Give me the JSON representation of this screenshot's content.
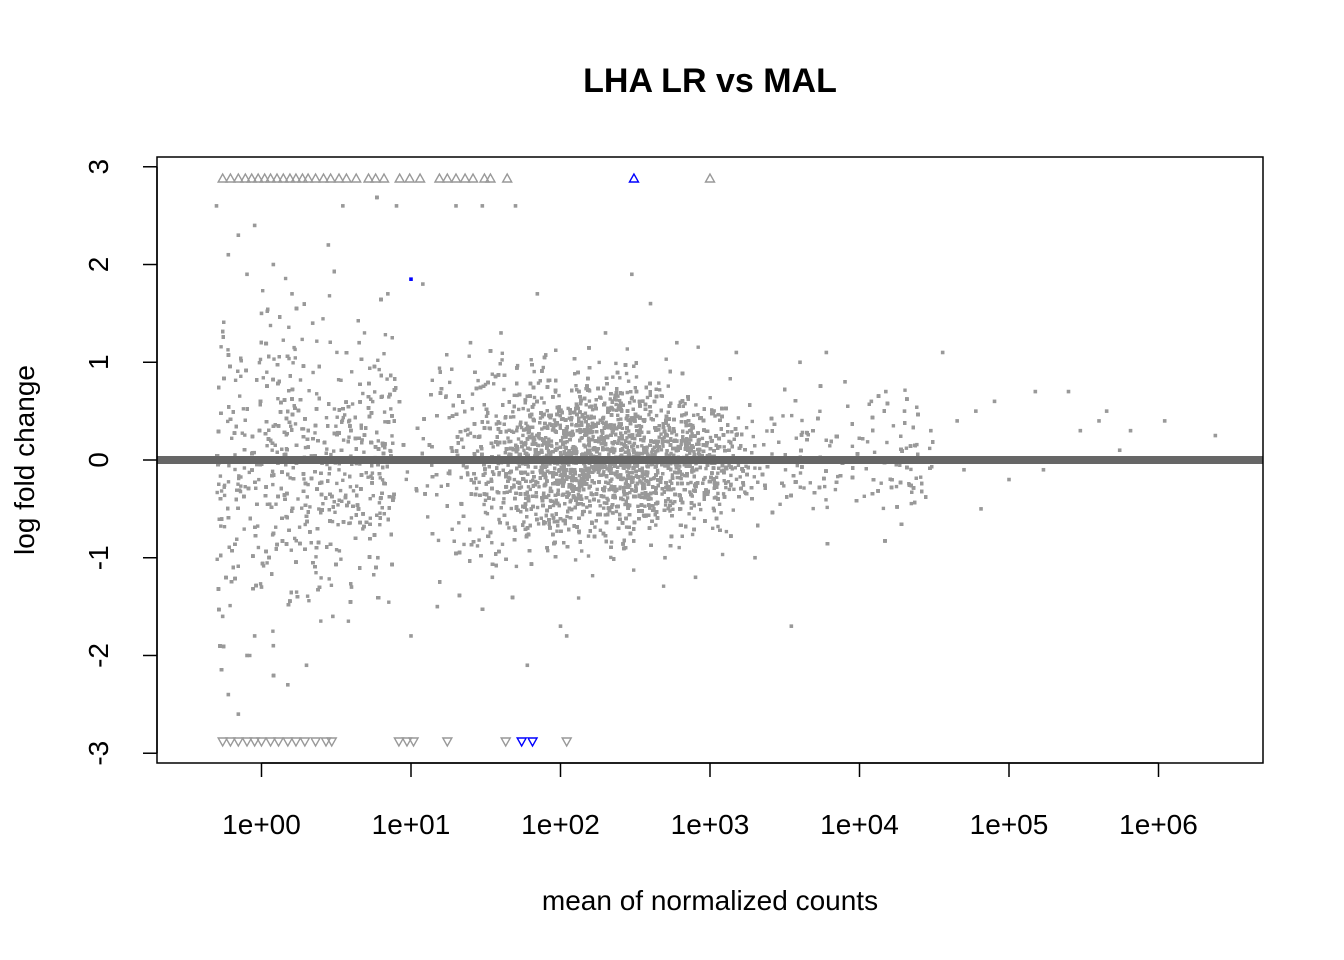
{
  "chart_data": {
    "type": "scatter",
    "title": "LHA LR vs MAL",
    "xlabel": "mean of normalized counts",
    "ylabel": "log fold change",
    "x_scale": "log10",
    "xlim": [
      0.2,
      5000000
    ],
    "ylim": [
      -3.1,
      3.1
    ],
    "x_ticks": [
      {
        "value": 1,
        "label": "1e+00"
      },
      {
        "value": 10,
        "label": "1e+01"
      },
      {
        "value": 100,
        "label": "1e+02"
      },
      {
        "value": 1000,
        "label": "1e+03"
      },
      {
        "value": 10000,
        "label": "1e+04"
      },
      {
        "value": 100000,
        "label": "1e+05"
      },
      {
        "value": 1000000,
        "label": "1e+06"
      }
    ],
    "y_ticks": [
      {
        "value": -3,
        "label": "-3"
      },
      {
        "value": -2,
        "label": "-2"
      },
      {
        "value": -1,
        "label": "-1"
      },
      {
        "value": 0,
        "label": "0"
      },
      {
        "value": 1,
        "label": "1"
      },
      {
        "value": 2,
        "label": "2"
      },
      {
        "value": 3,
        "label": "3"
      }
    ],
    "reference_line": {
      "y": 0,
      "color": "#666666"
    },
    "grid": false,
    "legend": "none",
    "colors": {
      "non_significant": "#999999",
      "significant": "#0000ff"
    },
    "series": [
      {
        "significant": false,
        "marker": "point",
        "points": [
          [
            0.5,
            2.6
          ],
          [
            0.55,
            -1.6
          ],
          [
            0.6,
            2.1
          ],
          [
            0.6,
            -2.4
          ],
          [
            0.7,
            2.3
          ],
          [
            0.7,
            -2.6
          ],
          [
            0.8,
            1.9
          ],
          [
            0.8,
            -2.0
          ],
          [
            0.9,
            2.4
          ],
          [
            0.9,
            -1.8
          ],
          [
            1.0,
            1.5
          ],
          [
            1.0,
            -1.3
          ],
          [
            1.2,
            2.0
          ],
          [
            1.2,
            -1.9
          ],
          [
            1.5,
            -2.3
          ],
          [
            1.6,
            1.7
          ],
          [
            2.0,
            -2.1
          ],
          [
            2.2,
            1.4
          ],
          [
            2.8,
            2.2
          ],
          [
            3.0,
            -1.6
          ],
          [
            3.5,
            2.6
          ],
          [
            4.0,
            -1.3
          ],
          [
            4.5,
            1.2
          ],
          [
            6,
            -1.0
          ],
          [
            7,
            1.7
          ],
          [
            8,
            2.6
          ],
          [
            10,
            -1.8
          ],
          [
            12,
            1.8
          ],
          [
            15,
            -1.5
          ],
          [
            20,
            2.6
          ],
          [
            25,
            1.2
          ],
          [
            30,
            2.6
          ],
          [
            35,
            -1.2
          ],
          [
            40,
            1.3
          ],
          [
            50,
            2.6
          ],
          [
            60,
            -2.1
          ],
          [
            70,
            1.7
          ],
          [
            100,
            -1.7
          ],
          [
            110,
            -1.8
          ],
          [
            200,
            1.3
          ],
          [
            300,
            1.9
          ],
          [
            400,
            1.6
          ],
          [
            500,
            -1.0
          ],
          [
            600,
            1.2
          ],
          [
            800,
            -1.2
          ],
          [
            1500,
            1.1
          ],
          [
            2000,
            -1.0
          ],
          [
            3500,
            -1.7
          ],
          [
            4000,
            1.0
          ],
          [
            6000,
            1.1
          ],
          [
            8000,
            0.8
          ],
          [
            12000,
            0.6
          ],
          [
            15000,
            0.7
          ],
          [
            20000,
            0.5
          ],
          [
            30000,
            0.3
          ],
          [
            36000,
            1.1
          ],
          [
            45000,
            0.4
          ],
          [
            50000,
            -0.1
          ],
          [
            60000,
            0.5
          ],
          [
            65000,
            -0.5
          ],
          [
            80000,
            0.6
          ],
          [
            100000,
            -0.2
          ],
          [
            150000,
            0.7
          ],
          [
            170000,
            -0.1
          ],
          [
            250000,
            0.7
          ],
          [
            300000,
            0.3
          ],
          [
            400000,
            0.4
          ],
          [
            450000,
            0.5
          ],
          [
            550000,
            0.1
          ],
          [
            650000,
            0.3
          ],
          [
            1100000,
            0.4
          ],
          [
            2400000,
            0.25
          ]
        ]
      },
      {
        "significant": true,
        "marker": "point",
        "points": [
          [
            10,
            1.85
          ]
        ]
      },
      {
        "significant": false,
        "marker": "triangle-up",
        "points": [
          [
            0.55,
            2.88
          ],
          [
            0.62,
            2.88
          ],
          [
            0.7,
            2.88
          ],
          [
            0.78,
            2.88
          ],
          [
            0.86,
            2.88
          ],
          [
            0.95,
            2.88
          ],
          [
            1.05,
            2.88
          ],
          [
            1.15,
            2.88
          ],
          [
            1.27,
            2.88
          ],
          [
            1.4,
            2.88
          ],
          [
            1.55,
            2.88
          ],
          [
            1.7,
            2.88
          ],
          [
            1.88,
            2.88
          ],
          [
            2.05,
            2.88
          ],
          [
            2.3,
            2.88
          ],
          [
            2.6,
            2.88
          ],
          [
            2.9,
            2.88
          ],
          [
            3.3,
            2.88
          ],
          [
            3.7,
            2.88
          ],
          [
            4.3,
            2.88
          ],
          [
            5.2,
            2.88
          ],
          [
            5.8,
            2.88
          ],
          [
            6.6,
            2.88
          ],
          [
            8.4,
            2.88
          ],
          [
            9.8,
            2.88
          ],
          [
            11.5,
            2.88
          ],
          [
            15.5,
            2.88
          ],
          [
            17.5,
            2.88
          ],
          [
            20,
            2.88
          ],
          [
            23,
            2.88
          ],
          [
            26,
            2.88
          ],
          [
            31,
            2.88
          ],
          [
            34,
            2.88
          ],
          [
            44,
            2.88
          ],
          [
            1000,
            2.88
          ]
        ]
      },
      {
        "significant": true,
        "marker": "triangle-up",
        "points": [
          [
            310,
            2.88
          ]
        ]
      },
      {
        "significant": false,
        "marker": "triangle-down",
        "points": [
          [
            0.55,
            -2.88
          ],
          [
            0.62,
            -2.88
          ],
          [
            0.7,
            -2.88
          ],
          [
            0.8,
            -2.88
          ],
          [
            0.9,
            -2.88
          ],
          [
            1.0,
            -2.88
          ],
          [
            1.15,
            -2.88
          ],
          [
            1.3,
            -2.88
          ],
          [
            1.5,
            -2.88
          ],
          [
            1.7,
            -2.88
          ],
          [
            1.95,
            -2.88
          ],
          [
            2.3,
            -2.88
          ],
          [
            2.7,
            -2.88
          ],
          [
            2.95,
            -2.88
          ],
          [
            8.3,
            -2.88
          ],
          [
            9.4,
            -2.88
          ],
          [
            10.4,
            -2.88
          ],
          [
            17.5,
            -2.88
          ],
          [
            43,
            -2.88
          ],
          [
            110,
            -2.88
          ]
        ]
      },
      {
        "significant": true,
        "marker": "triangle-down",
        "points": [
          [
            55,
            -2.88
          ],
          [
            65,
            -2.88
          ]
        ]
      }
    ]
  }
}
